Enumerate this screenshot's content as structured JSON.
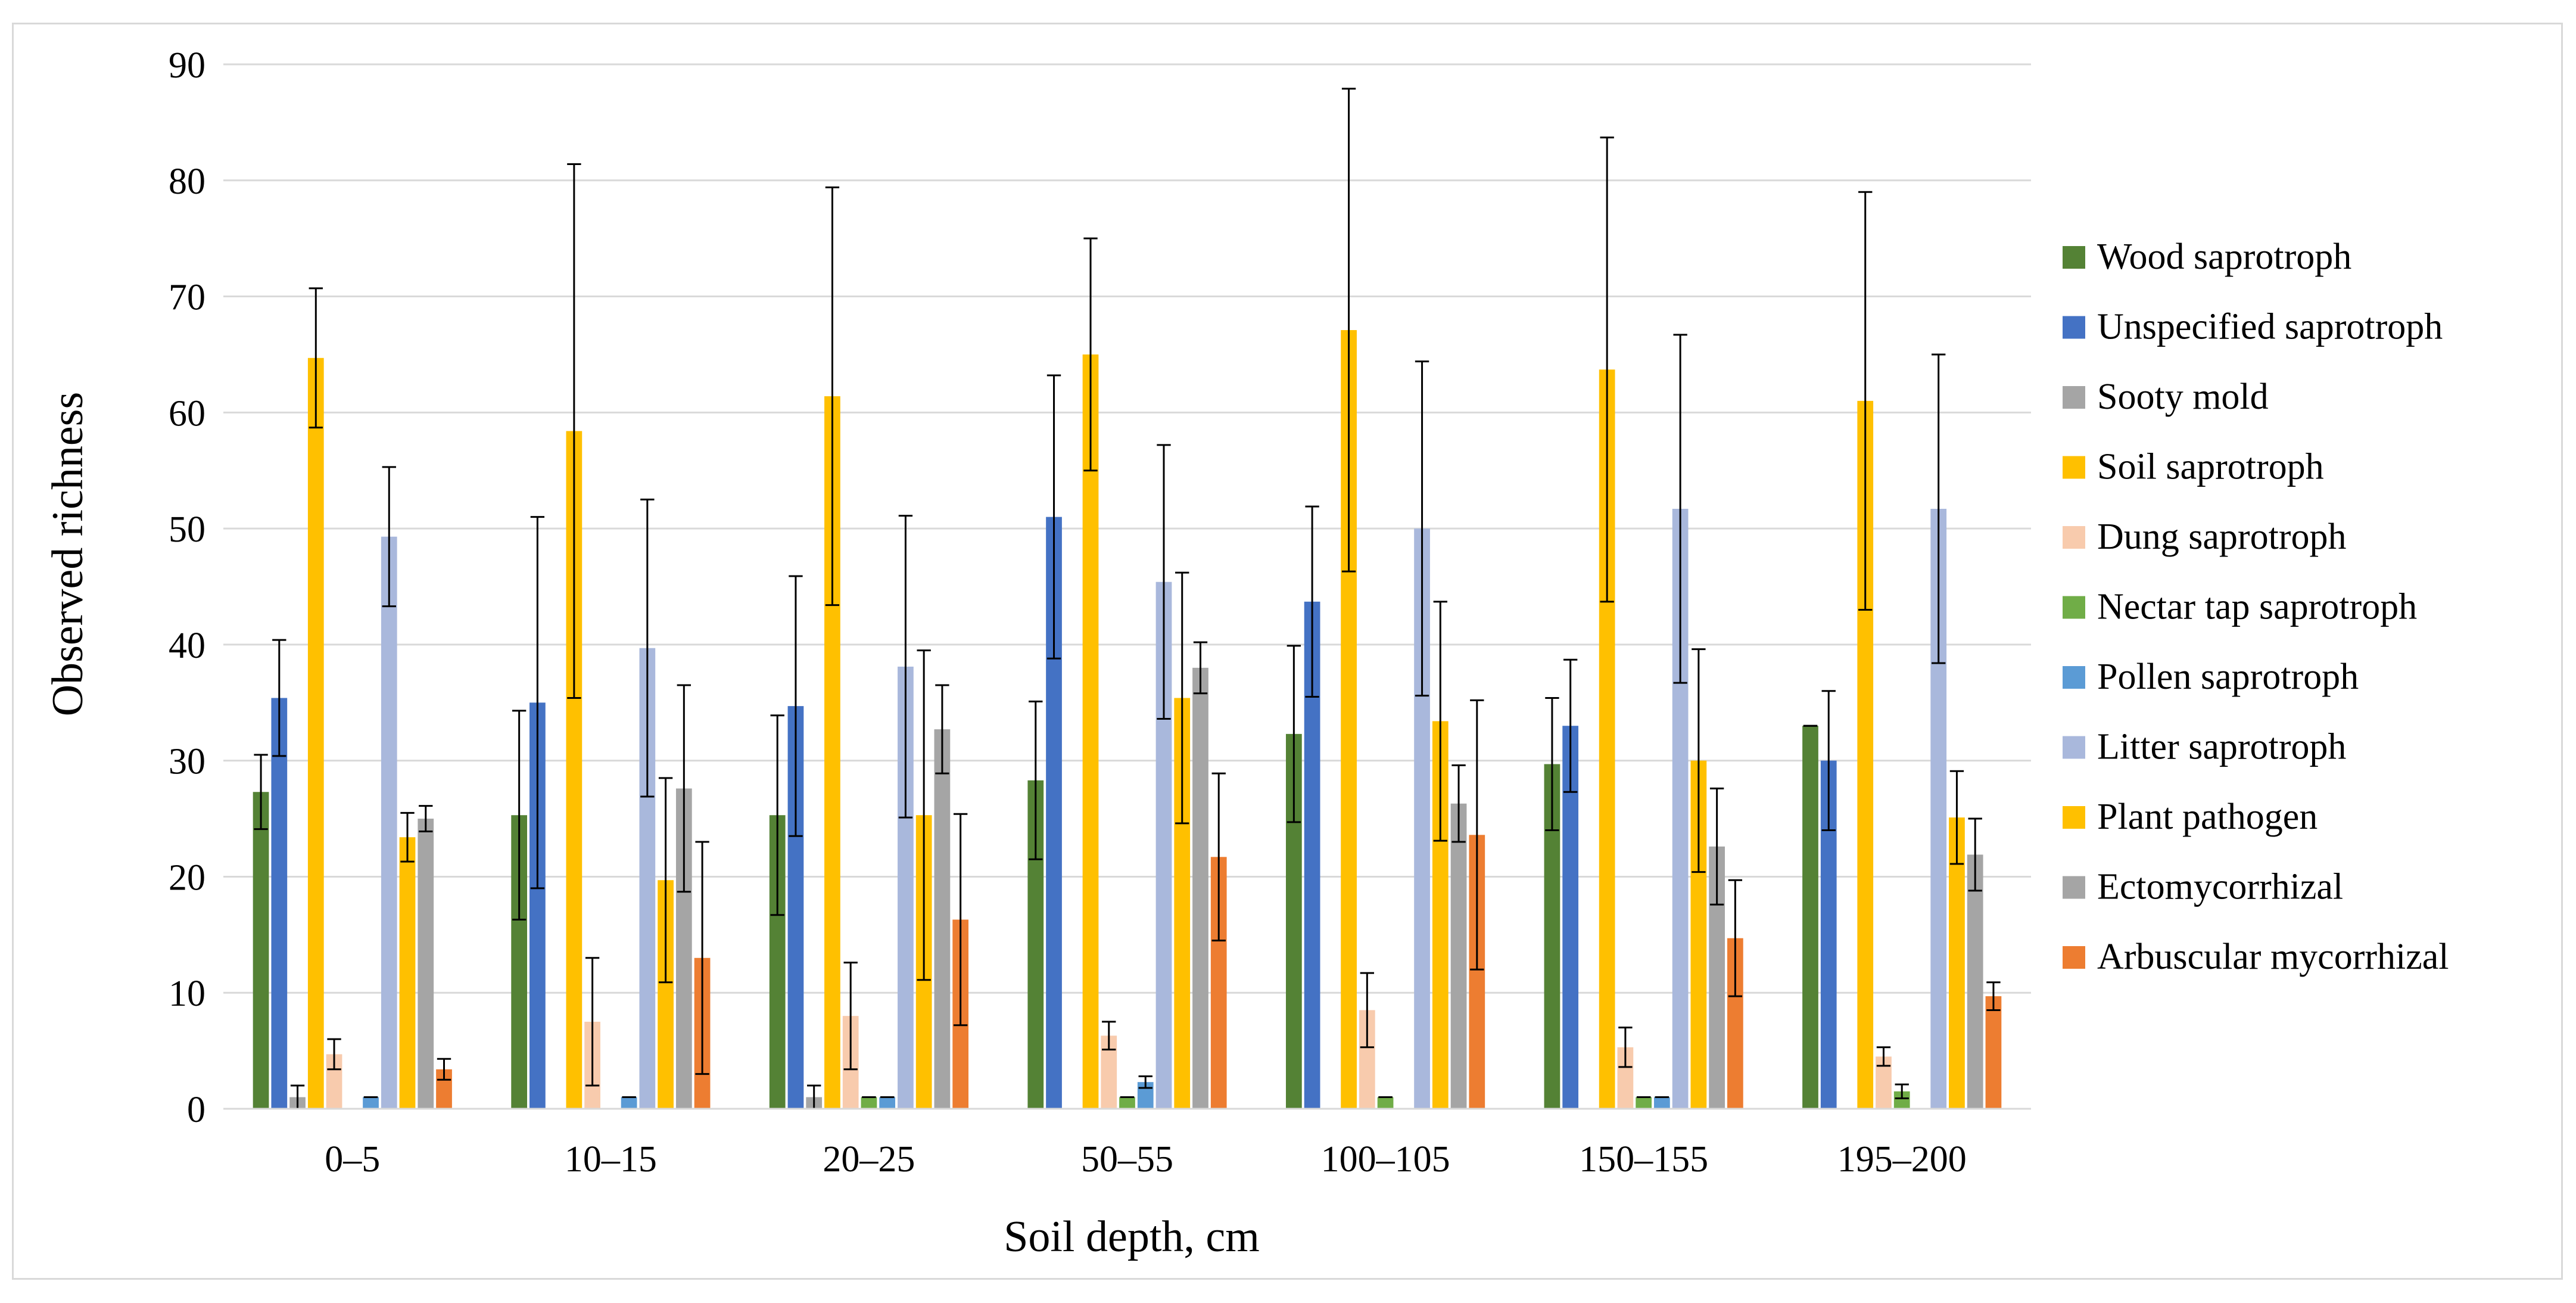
{
  "chart_data": {
    "type": "bar",
    "title": "",
    "xlabel": "Soil depth, cm",
    "ylabel": "Observed richness",
    "ylim": [
      0,
      90
    ],
    "yticks": [
      0,
      10,
      20,
      30,
      40,
      50,
      60,
      70,
      80,
      90
    ],
    "grid": true,
    "legend_position": "right",
    "categories": [
      "0–5",
      "10–15",
      "20–25",
      "50–55",
      "100–105",
      "150–155",
      "195–200"
    ],
    "series": [
      {
        "name": "Wood saprotroph",
        "color": "#548235",
        "values": [
          27.3,
          25.3,
          25.3,
          28.3,
          32.3,
          29.7,
          33.0
        ],
        "errors": [
          3.2,
          9.0,
          8.6,
          6.8,
          7.6,
          5.7,
          0
        ]
      },
      {
        "name": "Unspecified saprotroph",
        "color": "#4472c4",
        "values": [
          35.4,
          35.0,
          34.7,
          51.0,
          43.7,
          33.0,
          30.0
        ],
        "errors": [
          5.0,
          16.0,
          11.2,
          12.2,
          8.2,
          5.7,
          6.0
        ]
      },
      {
        "name": "Sooty mold",
        "color": "#a5a5a5",
        "values": [
          1.0,
          0,
          1.0,
          0,
          0,
          0,
          0
        ],
        "errors": [
          1.0,
          0,
          1.0,
          0,
          0,
          0,
          0
        ]
      },
      {
        "name": "Soil saprotroph",
        "color": "#ffc000",
        "values": [
          64.7,
          58.4,
          61.4,
          65.0,
          67.1,
          63.7,
          61.0
        ],
        "errors": [
          6.0,
          23.0,
          18.0,
          10.0,
          20.8,
          20.0,
          18.0
        ]
      },
      {
        "name": "Dung saprotroph",
        "color": "#f8cbad",
        "values": [
          4.7,
          7.5,
          8.0,
          6.3,
          8.5,
          5.3,
          4.5
        ],
        "errors": [
          1.3,
          5.5,
          4.6,
          1.2,
          3.2,
          1.7,
          0.8
        ]
      },
      {
        "name": "Nectar tap saprotroph",
        "color": "#70ad47",
        "values": [
          0,
          0,
          1.0,
          1.0,
          1.0,
          1.0,
          1.5
        ],
        "errors": [
          0,
          0,
          0,
          0,
          0,
          0,
          0.6
        ]
      },
      {
        "name": "Pollen saprotroph",
        "color": "#5b9bd5",
        "values": [
          1.0,
          1.0,
          1.0,
          2.3,
          0,
          1.0,
          0
        ],
        "errors": [
          0,
          0,
          0,
          0.5,
          0,
          0,
          0
        ]
      },
      {
        "name": "Litter saprotroph",
        "color": "#a9b8dc",
        "values": [
          49.3,
          39.7,
          38.1,
          45.4,
          50.0,
          51.7,
          51.7
        ],
        "errors": [
          6.0,
          12.8,
          13.0,
          11.8,
          14.4,
          15.0,
          13.3
        ]
      },
      {
        "name": "Plant pathogen",
        "color": "#ffc000",
        "values": [
          23.4,
          19.7,
          25.3,
          35.4,
          33.4,
          30.0,
          25.1
        ],
        "errors": [
          2.1,
          8.8,
          14.2,
          10.8,
          10.3,
          9.6,
          4.0
        ]
      },
      {
        "name": "Ectomycorrhizal",
        "color": "#a5a5a5",
        "values": [
          25.0,
          27.6,
          32.7,
          38.0,
          26.3,
          22.6,
          21.9
        ],
        "errors": [
          1.1,
          8.9,
          3.8,
          2.2,
          3.3,
          5.0,
          3.1
        ]
      },
      {
        "name": "Arbuscular mycorrhizal",
        "color": "#ed7d31",
        "values": [
          3.4,
          13.0,
          16.3,
          21.7,
          23.6,
          14.7,
          9.7
        ],
        "errors": [
          0.9,
          10.0,
          9.1,
          7.2,
          11.6,
          5.0,
          1.2
        ]
      }
    ]
  }
}
